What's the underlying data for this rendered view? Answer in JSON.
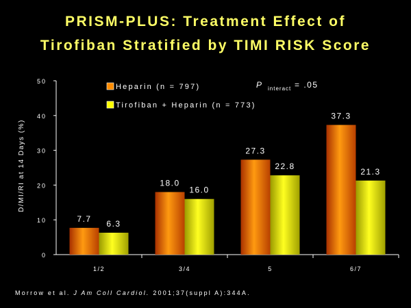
{
  "title_line1": "PRISM-PLUS: Treatment Effect of",
  "title_line2": "Tirofiban Stratified by TIMI RISK Score",
  "p_symbol": "P",
  "p_subscript": "interact",
  "p_value": "= .05",
  "footnote": {
    "authors": "Morrow et al. ",
    "journal": "J Am Coll Cardiol.",
    "citation": " 2001;37(suppl A):344A."
  },
  "colors": {
    "heparin": "#ff8c00",
    "tirofiban": "#ffff00",
    "axis": "#ffffff"
  },
  "chart_data": {
    "type": "bar",
    "categories": [
      "1/2",
      "3/4",
      "5",
      "6/7"
    ],
    "series": [
      {
        "name": "Heparin (n = 797)",
        "values": [
          7.7,
          18.0,
          27.3,
          37.3
        ],
        "labels": [
          "7.7",
          "18.0",
          "27.3",
          "37.3"
        ]
      },
      {
        "name": "Tirofiban + Heparin (n = 773)",
        "values": [
          6.3,
          16.0,
          22.8,
          21.3
        ],
        "labels": [
          "6.3",
          "16.0",
          "22.8",
          "21.3"
        ]
      }
    ],
    "ylabel": "D/MI/RI at 14 Days (%)",
    "xlabel": "",
    "ylim": [
      0,
      50
    ],
    "yticks": [
      0,
      10,
      20,
      30,
      40,
      50
    ],
    "legend": "top-left",
    "grid": false
  }
}
